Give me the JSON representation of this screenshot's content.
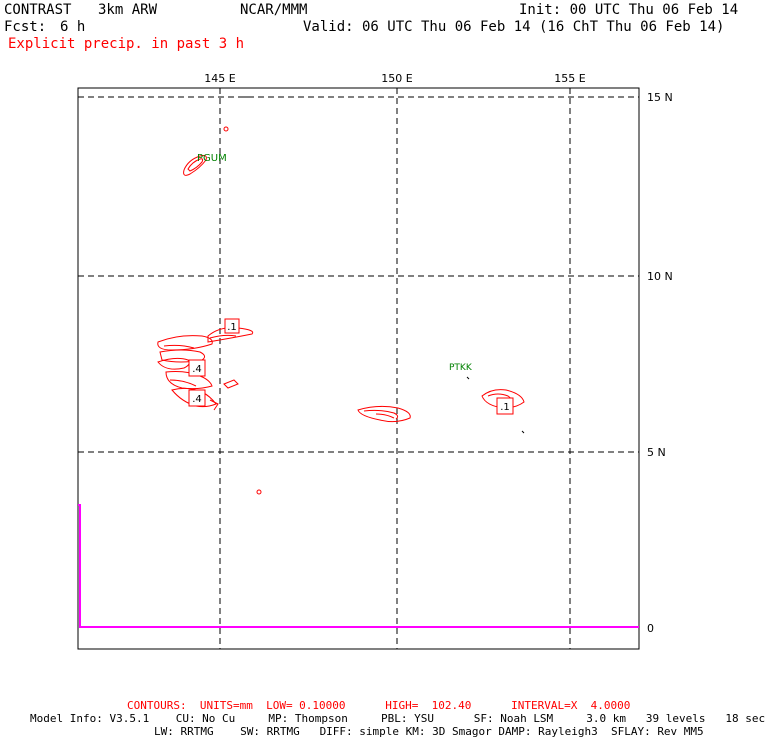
{
  "header": {
    "model": "CONTRAST",
    "resolution": "3km ARW",
    "org": "NCAR/MMM",
    "init": "Init: 00 UTC Thu 06 Feb 14",
    "fcst_label": "Fcst:",
    "fcst_value": "6 h",
    "valid": "Valid: 06 UTC Thu 06 Feb 14 (16 ChT Thu 06 Feb 14)",
    "field": "Explicit precip. in past 3 h"
  },
  "map": {
    "lon_labels": [
      "145 E",
      "150 E",
      "155 E"
    ],
    "lat_labels": [
      "15 N",
      "10 N",
      "5 N"
    ],
    "stations": [
      "PGUM",
      "PTKK"
    ],
    "contour_labels": [
      ".1",
      ".4",
      ".4",
      ".1"
    ],
    "right_axis_zero": "0",
    "colors": {
      "contours": "#ff0000",
      "stations": "#008000",
      "profile": "#ff00ff",
      "grid": "#000000"
    }
  },
  "footer": {
    "contours": "CONTOURS:  UNITS=mm  LOW= 0.10000      HIGH=  102.40      INTERVAL=X  4.0000",
    "model_info_1": "Model Info: V3.5.1    CU: No Cu     MP: Thompson     PBL: YSU      SF: Noah LSM     3.0 km   39 levels   18 sec",
    "model_info_2": "LW: RRTMG    SW: RRTMG   DIFF: simple KM: 3D Smagor DAMP: Rayleigh3  SFLAY: Rev MM5"
  }
}
